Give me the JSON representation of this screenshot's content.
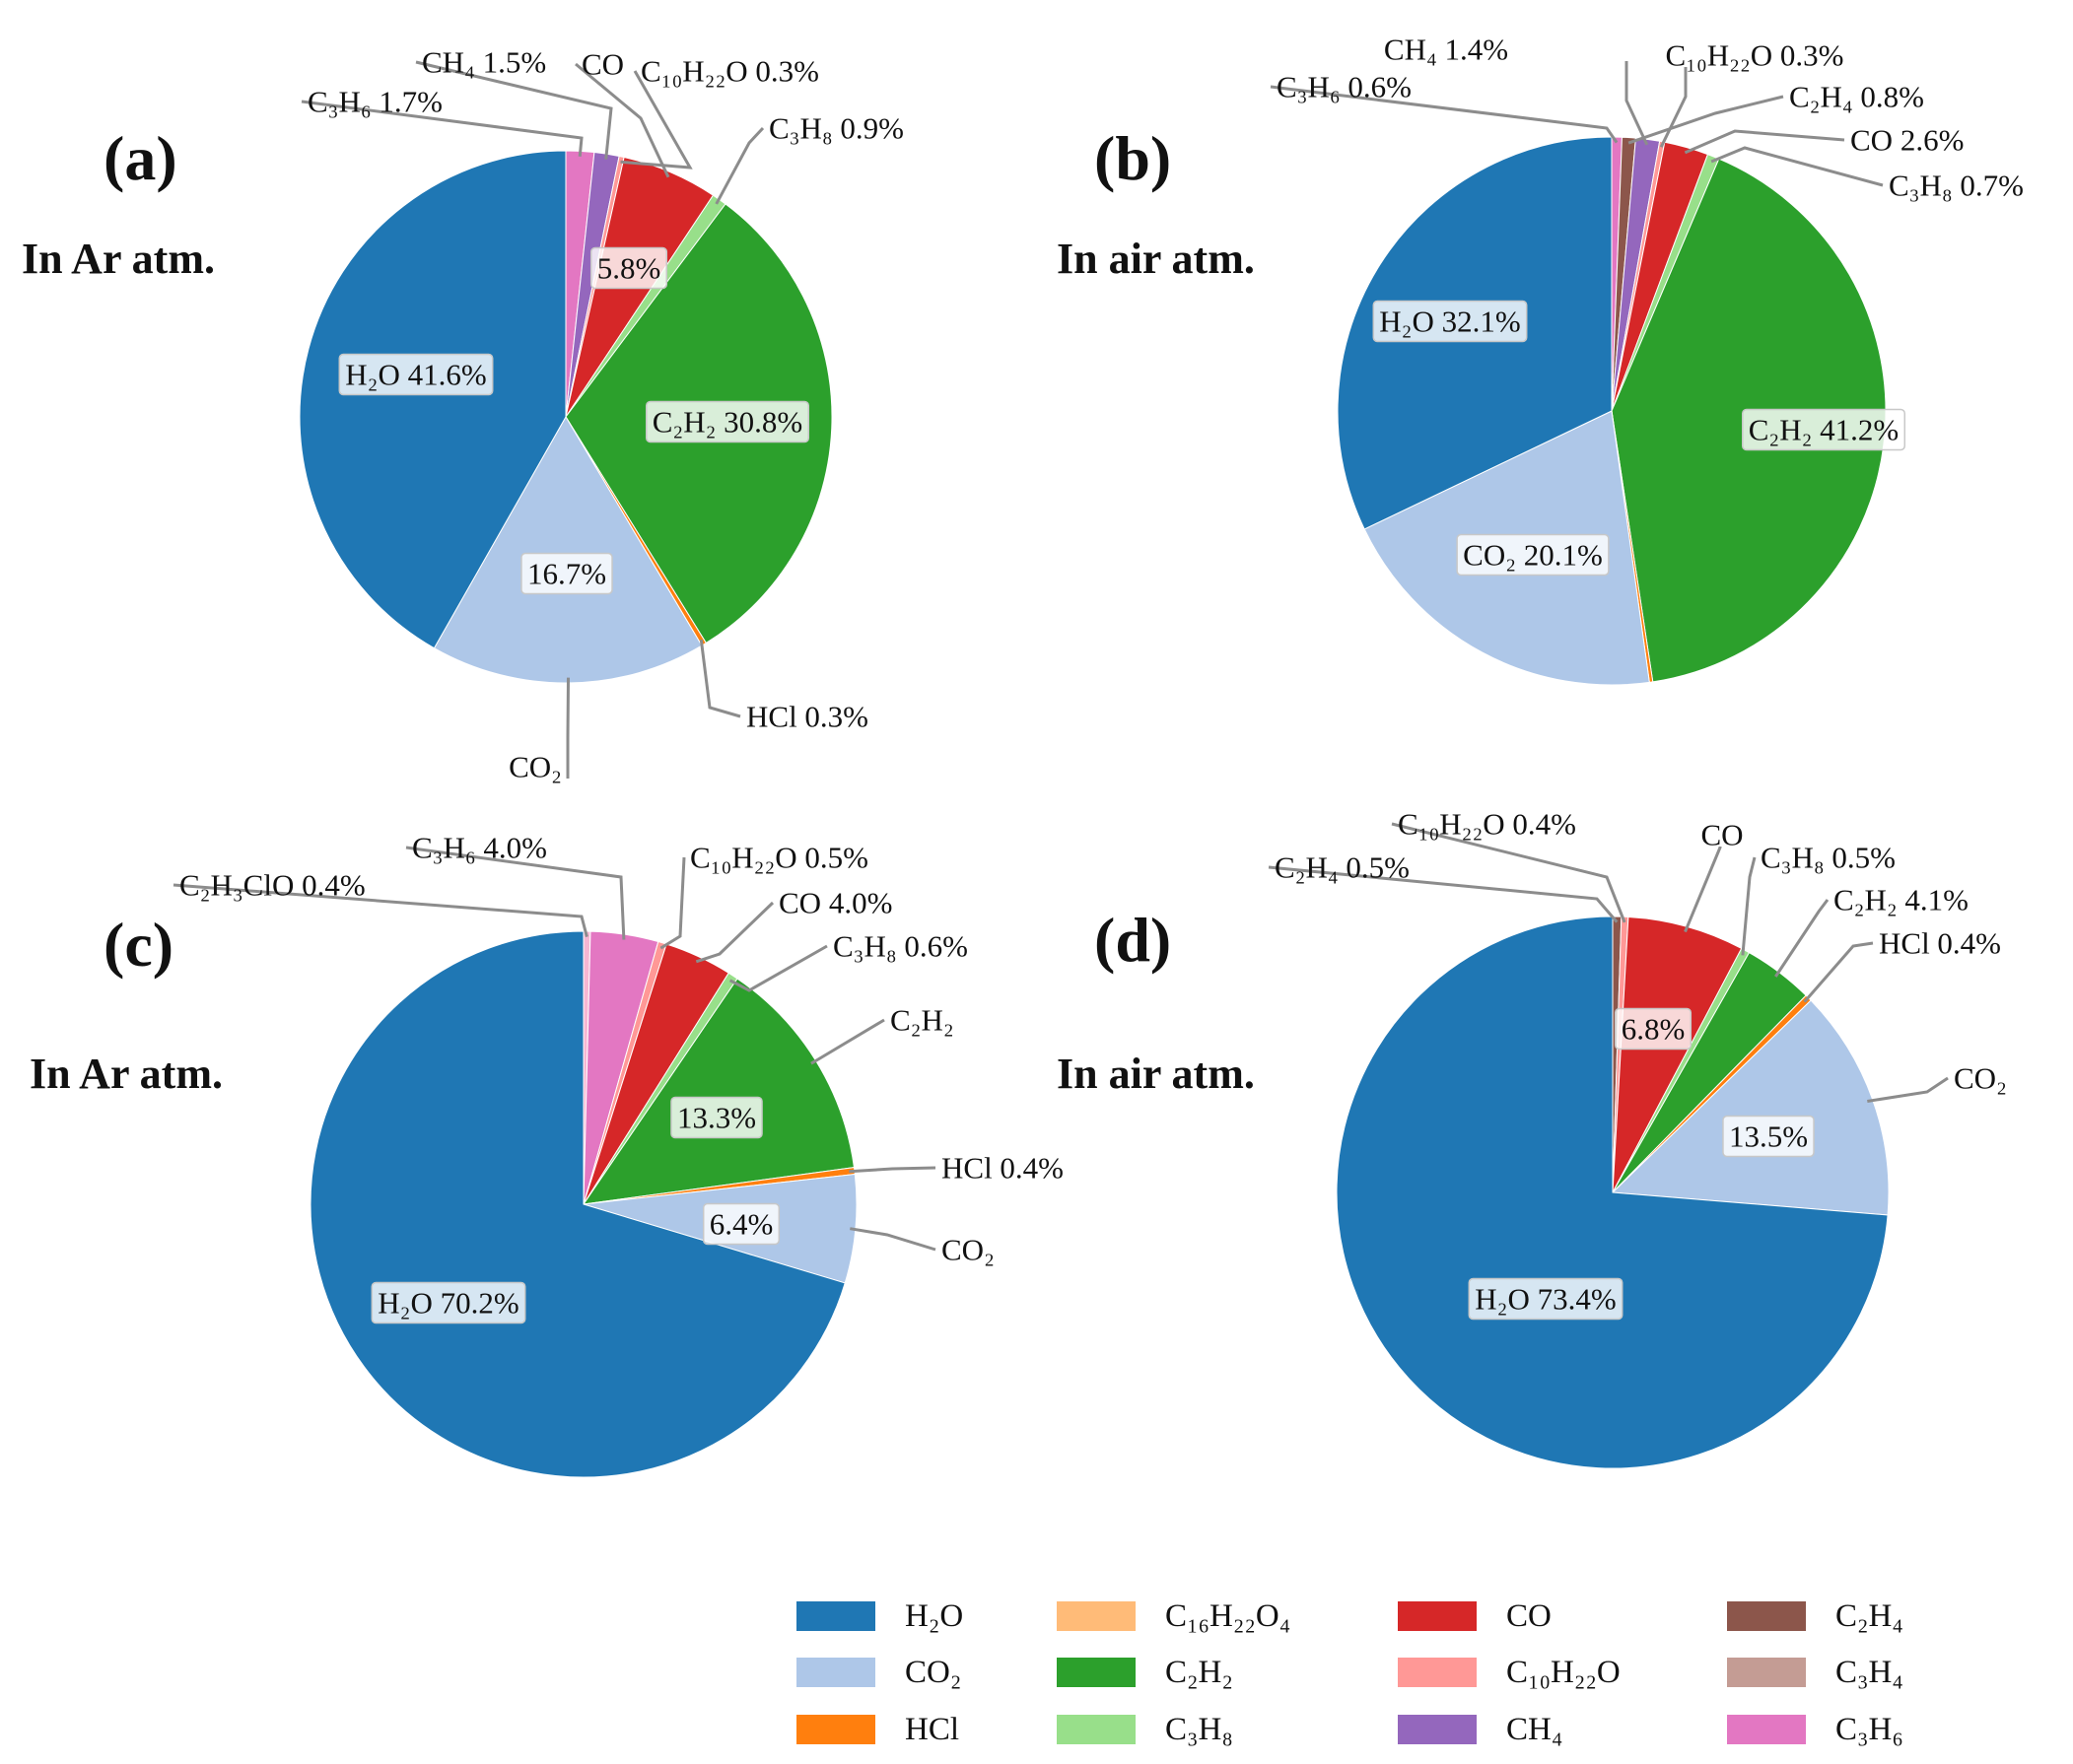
{
  "colors": {
    "H2O": "#1f77b4",
    "CO2": "#aec7e8",
    "HCl": "#ff7f0e",
    "C16H22O4": "#ffbb78",
    "C2H2": "#2ca02c",
    "C3H8": "#98df8a",
    "CO": "#d62728",
    "C10H22O": "#ff9896",
    "CH4": "#9467bd",
    "C2H4": "#8c564b",
    "C3H4": "#c49c94",
    "C3H6": "#e377c2",
    "C2H3ClO": "#f7b6d2"
  },
  "chart_data": [
    {
      "type": "pie",
      "panel": "(a)",
      "atmosphere": "In Ar atm.",
      "slices": [
        {
          "key": "C3H6",
          "name": "C₃H₆",
          "value": 1.7
        },
        {
          "key": "CH4",
          "name": "CH₄",
          "value": 1.5
        },
        {
          "key": "C10H22O",
          "name": "C₁₀H₂₂O",
          "value": 0.3
        },
        {
          "key": "CO",
          "name": "CO",
          "value": 5.8
        },
        {
          "key": "C3H8",
          "name": "C₃H₈",
          "value": 0.9
        },
        {
          "key": "C2H2",
          "name": "C₂H₂",
          "value": 30.8
        },
        {
          "key": "HCl",
          "name": "HCl",
          "value": 0.3
        },
        {
          "key": "CO2",
          "name": "CO₂",
          "value": 16.7
        },
        {
          "key": "H2O",
          "name": "H₂O",
          "value": 41.6
        }
      ],
      "labels": [
        {
          "text": "C₃H₆ 1.7%",
          "slice": "C3H6",
          "kind": "leader"
        },
        {
          "text": "CH₄ 1.5%",
          "slice": "CH4",
          "kind": "leader"
        },
        {
          "text": "CO",
          "slice": "CO",
          "kind": "leader"
        },
        {
          "text": "C₁₀H₂₂O 0.3%",
          "slice": "C10H22O",
          "kind": "leader"
        },
        {
          "text": "C₃H₈ 0.9%",
          "slice": "C3H8",
          "kind": "leader"
        },
        {
          "text": "5.8%",
          "slice": "CO",
          "kind": "inside"
        },
        {
          "text": "H₂O 41.6%",
          "slice": "H2O",
          "kind": "inside"
        },
        {
          "text": "C₂H₂ 30.8%",
          "slice": "C2H2",
          "kind": "inside"
        },
        {
          "text": "16.7%",
          "slice": "CO2",
          "kind": "inside"
        },
        {
          "text": "HCl 0.3%",
          "slice": "HCl",
          "kind": "leader"
        },
        {
          "text": "CO₂",
          "slice": "CO2",
          "kind": "leader"
        }
      ]
    },
    {
      "type": "pie",
      "panel": "(b)",
      "atmosphere": "In air atm.",
      "slices": [
        {
          "key": "C3H6",
          "name": "C₃H₆",
          "value": 0.6
        },
        {
          "key": "C2H4",
          "name": "C₂H₄",
          "value": 0.8
        },
        {
          "key": "CH4",
          "name": "CH₄",
          "value": 1.4
        },
        {
          "key": "C10H22O",
          "name": "C₁₀H₂₂O",
          "value": 0.3
        },
        {
          "key": "CO",
          "name": "CO",
          "value": 2.6
        },
        {
          "key": "C3H8",
          "name": "C₃H₈",
          "value": 0.7
        },
        {
          "key": "C2H2",
          "name": "C₂H₂",
          "value": 41.2
        },
        {
          "key": "HCl",
          "name": "HCl",
          "value": 0.2
        },
        {
          "key": "CO2",
          "name": "CO₂",
          "value": 20.1
        },
        {
          "key": "H2O",
          "name": "H₂O",
          "value": 32.1
        }
      ],
      "labels": [
        {
          "text": "CH₄ 1.4%",
          "slice": "CH4",
          "kind": "leader"
        },
        {
          "text": "C₁₀H₂₂O 0.3%",
          "slice": "C10H22O",
          "kind": "leader"
        },
        {
          "text": "C₃H₆ 0.6%",
          "slice": "C3H6",
          "kind": "leader"
        },
        {
          "text": "C₂H₄ 0.8%",
          "slice": "C2H4",
          "kind": "leader"
        },
        {
          "text": "CO 2.6%",
          "slice": "CO",
          "kind": "leader"
        },
        {
          "text": "C₃H₈ 0.7%",
          "slice": "C3H8",
          "kind": "leader"
        },
        {
          "text": "H₂O 32.1%",
          "slice": "H2O",
          "kind": "inside"
        },
        {
          "text": "C₂H₂ 41.2%",
          "slice": "C2H2",
          "kind": "inside"
        },
        {
          "text": "CO₂ 20.1%",
          "slice": "CO2",
          "kind": "inside"
        }
      ]
    },
    {
      "type": "pie",
      "panel": "(c)",
      "atmosphere": "In Ar atm.",
      "slices": [
        {
          "key": "C2H3ClO",
          "name": "C₂H₃ClO",
          "value": 0.4
        },
        {
          "key": "C3H6",
          "name": "C₃H₆",
          "value": 4.0
        },
        {
          "key": "C10H22O",
          "name": "C₁₀H₂₂O",
          "value": 0.5
        },
        {
          "key": "CO",
          "name": "CO",
          "value": 4.0
        },
        {
          "key": "C3H8",
          "name": "C₃H₈",
          "value": 0.6
        },
        {
          "key": "C2H2",
          "name": "C₂H₂",
          "value": 13.3
        },
        {
          "key": "HCl",
          "name": "HCl",
          "value": 0.4
        },
        {
          "key": "CO2",
          "name": "CO₂",
          "value": 6.4
        },
        {
          "key": "H2O",
          "name": "H₂O",
          "value": 70.2
        }
      ],
      "labels": [
        {
          "text": "C₃H₆ 4.0%",
          "slice": "C3H6",
          "kind": "leader"
        },
        {
          "text": "C₂H₃ClO 0.4%",
          "slice": "C2H3ClO",
          "kind": "leader"
        },
        {
          "text": "C₁₀H₂₂O 0.5%",
          "slice": "C10H22O",
          "kind": "leader"
        },
        {
          "text": "CO 4.0%",
          "slice": "CO",
          "kind": "leader"
        },
        {
          "text": "C₃H₈ 0.6%",
          "slice": "C3H8",
          "kind": "leader"
        },
        {
          "text": "C₂H₂",
          "slice": "C2H2",
          "kind": "leader"
        },
        {
          "text": "13.3%",
          "slice": "C2H2",
          "kind": "inside"
        },
        {
          "text": "HCl 0.4%",
          "slice": "HCl",
          "kind": "leader"
        },
        {
          "text": "6.4%",
          "slice": "CO2",
          "kind": "inside"
        },
        {
          "text": "CO₂",
          "slice": "CO2",
          "kind": "leader"
        },
        {
          "text": "H₂O 70.2%",
          "slice": "H2O",
          "kind": "inside"
        }
      ]
    },
    {
      "type": "pie",
      "panel": "(d)",
      "atmosphere": "In air atm.",
      "slices": [
        {
          "key": "C2H4",
          "name": "C₂H₄",
          "value": 0.5
        },
        {
          "key": "C10H22O",
          "name": "C₁₀H₂₂O",
          "value": 0.4
        },
        {
          "key": "CO",
          "name": "CO",
          "value": 6.8
        },
        {
          "key": "C3H8",
          "name": "C₃H₈",
          "value": 0.5
        },
        {
          "key": "C2H2",
          "name": "C₂H₂",
          "value": 4.1
        },
        {
          "key": "HCl",
          "name": "HCl",
          "value": 0.4
        },
        {
          "key": "CO2",
          "name": "CO₂",
          "value": 13.5
        },
        {
          "key": "H2O",
          "name": "H₂O",
          "value": 73.4
        }
      ],
      "labels": [
        {
          "text": "C₁₀H₂₂O 0.4%",
          "slice": "C10H22O",
          "kind": "leader"
        },
        {
          "text": "C₂H₄ 0.5%",
          "slice": "C2H4",
          "kind": "leader"
        },
        {
          "text": "CO",
          "slice": "CO",
          "kind": "leader"
        },
        {
          "text": "C₃H₈ 0.5%",
          "slice": "C3H8",
          "kind": "leader"
        },
        {
          "text": "C₂H₂ 4.1%",
          "slice": "C2H2",
          "kind": "leader"
        },
        {
          "text": "HCl 0.4%",
          "slice": "HCl",
          "kind": "leader"
        },
        {
          "text": "6.8%",
          "slice": "CO",
          "kind": "inside"
        },
        {
          "text": "CO₂",
          "slice": "CO2",
          "kind": "leader"
        },
        {
          "text": "13.5%",
          "slice": "CO2",
          "kind": "inside"
        },
        {
          "text": "H₂O 73.4%",
          "slice": "H2O",
          "kind": "inside"
        }
      ]
    }
  ],
  "legend": [
    {
      "key": "H2O",
      "label": "H₂O"
    },
    {
      "key": "C16H22O4",
      "label": "C₁₆H₂₂O₄"
    },
    {
      "key": "CO",
      "label": "CO"
    },
    {
      "key": "C2H4",
      "label": "C₂H₄"
    },
    {
      "key": "CO2",
      "label": "CO₂"
    },
    {
      "key": "C2H2",
      "label": "C₂H₂"
    },
    {
      "key": "C10H22O",
      "label": "C₁₀H₂₂O"
    },
    {
      "key": "C3H4",
      "label": "C₃H₄"
    },
    {
      "key": "HCl",
      "label": "HCl"
    },
    {
      "key": "C3H8",
      "label": "C₃H₈"
    },
    {
      "key": "CH4",
      "label": "CH₄"
    },
    {
      "key": "C3H6",
      "label": "C₃H₆"
    }
  ]
}
